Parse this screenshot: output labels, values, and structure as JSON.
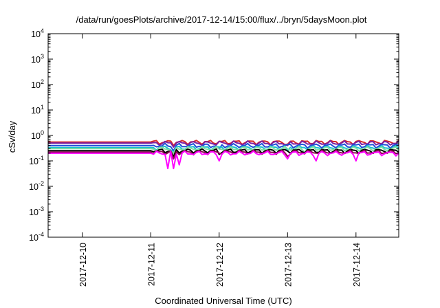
{
  "chart_data": {
    "type": "line",
    "title": "/data/run/goesPlots/archive/2017-12-14/15:00/flux/../bryn/5daysMoon.plot",
    "xlabel": "Coordinated Universal Time (UTC)",
    "ylabel": "cSv/day",
    "yscale": "log",
    "ylim": [
      0.0001,
      10000
    ],
    "yticks": [
      {
        "base": "10",
        "exp": "4"
      },
      {
        "base": "10",
        "exp": "3"
      },
      {
        "base": "10",
        "exp": "2"
      },
      {
        "base": "10",
        "exp": "1"
      },
      {
        "base": "10",
        "exp": "0"
      },
      {
        "base": "10",
        "exp": "-1"
      },
      {
        "base": "10",
        "exp": "-2"
      },
      {
        "base": "10",
        "exp": "-3"
      },
      {
        "base": "10",
        "exp": "-4"
      }
    ],
    "xlim": [
      "2017-12-09 12:00",
      "2017-12-14 15:00"
    ],
    "xticks": [
      "2017-12-10",
      "2017-12-11",
      "2017-12-12",
      "2017-12-13",
      "2017-12-14"
    ],
    "grid": false,
    "legend": "none",
    "flat_until": "2017-12-11 00:00",
    "series": [
      {
        "color": "#d62728",
        "level": 0.55,
        "dips": [
          {
            "t": "2017-12-11 08:00",
            "v": 0.4
          },
          {
            "t": "2017-12-13 00:00",
            "v": 0.45
          }
        ]
      },
      {
        "color": "#7b1fa2",
        "level": 0.5,
        "dips": [
          {
            "t": "2017-12-11 08:00",
            "v": 0.35
          },
          {
            "t": "2017-12-13 00:00",
            "v": 0.4
          }
        ]
      },
      {
        "color": "#1f4fd8",
        "level": 0.4,
        "dips": [
          {
            "t": "2017-12-11 08:00",
            "v": 0.25
          },
          {
            "t": "2017-12-12 00:00",
            "v": 0.3
          }
        ]
      },
      {
        "color": "#17becf",
        "level": 0.33,
        "dips": [
          {
            "t": "2017-12-11 08:00",
            "v": 0.22
          },
          {
            "t": "2017-12-13 00:00",
            "v": 0.25
          }
        ]
      },
      {
        "color": "#80e0a0",
        "level": 0.3,
        "dips": [
          {
            "t": "2017-12-11 08:00",
            "v": 0.2
          },
          {
            "t": "2017-12-13 06:00",
            "v": 0.22
          }
        ]
      },
      {
        "color": "#000000",
        "level": 0.25,
        "dips": [
          {
            "t": "2017-12-11 08:00",
            "v": 0.15
          },
          {
            "t": "2017-12-12 00:00",
            "v": 0.18
          }
        ]
      },
      {
        "color": "#8b0a50",
        "level": 0.22,
        "dips": [
          {
            "t": "2017-12-11 08:00",
            "v": 0.12
          },
          {
            "t": "2017-12-13 00:00",
            "v": 0.15
          }
        ]
      },
      {
        "color": "#ff00ff",
        "level": 0.2,
        "dips": [
          {
            "t": "2017-12-11 06:00",
            "v": 0.05
          },
          {
            "t": "2017-12-11 08:00",
            "v": 0.05
          },
          {
            "t": "2017-12-11 10:00",
            "v": 0.07
          },
          {
            "t": "2017-12-12 00:00",
            "v": 0.1
          },
          {
            "t": "2017-12-13 00:00",
            "v": 0.12
          },
          {
            "t": "2017-12-13 10:00",
            "v": 0.1
          },
          {
            "t": "2017-12-14 00:00",
            "v": 0.1
          }
        ]
      }
    ]
  }
}
